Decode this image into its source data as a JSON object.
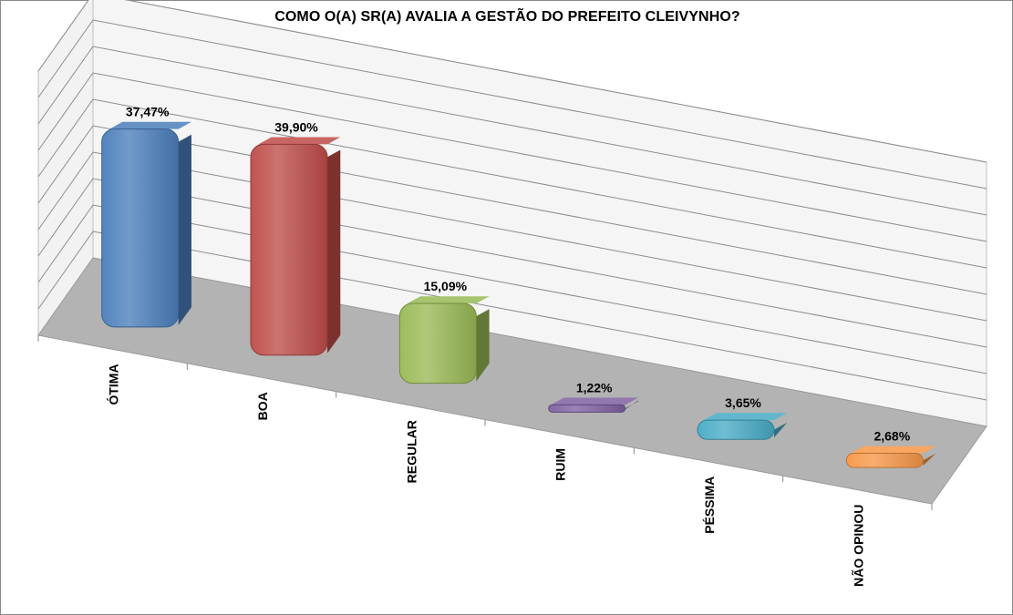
{
  "chart_data": {
    "type": "bar",
    "title": "COMO O(A) SR(A) AVALIA A GESTÃO DO PREFEITO CLEIVYNHO?",
    "categories": [
      "ÓTIMA",
      "BOA",
      "REGULAR",
      "RUIM",
      "PÉSSIMA",
      "NÃO OPINOU"
    ],
    "values": [
      37.47,
      39.9,
      15.09,
      1.22,
      3.65,
      2.68
    ],
    "data_labels": [
      "37,47%",
      "39,90%",
      "15,09%",
      "1,22%",
      "3,65%",
      "2,68%"
    ],
    "colors": [
      "#4a7ebb",
      "#be4b48",
      "#98b954",
      "#7d60a0",
      "#46aac5",
      "#f79646"
    ],
    "three_d": true,
    "grid": true,
    "legend": "none"
  }
}
